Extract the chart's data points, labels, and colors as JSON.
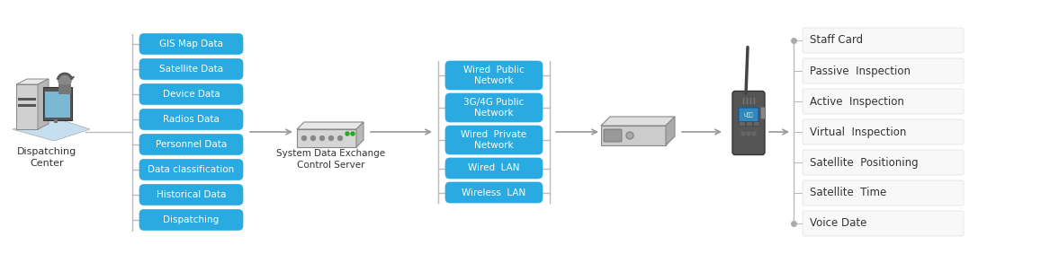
{
  "bg_color": "#ffffff",
  "blue_box_color": "#29ABE2",
  "blue_box_text_color": "#ffffff",
  "arrow_color": "#999999",
  "border_color": "#bbbbbb",
  "text_color": "#333333",
  "left_boxes": [
    "GIS Map Data",
    "Satellite Data",
    "Device Data",
    "Radios Data",
    "Personnel Data",
    "Data classification",
    "Historical Data",
    "Dispatching"
  ],
  "left_label": "Dispatching\nCenter",
  "middle_boxes": [
    "Wired  Public\nNetwork",
    "3G/4G Public\nNetwork",
    "Wired  Private\nNetwork",
    "Wired  LAN",
    "Wireless  LAN"
  ],
  "middle_label": "System Data Exchange\nControl Server",
  "right_labels": [
    "Staff Card",
    "Passive  Inspection",
    "Active  Inspection",
    "Virtual  Inspection",
    "Satellite  Positioning",
    "Satellite  Time",
    "Voice Date"
  ]
}
